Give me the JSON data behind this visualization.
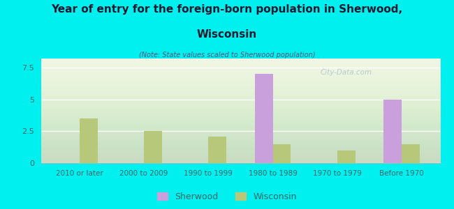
{
  "categories": [
    "2010 or later",
    "2000 to 2009",
    "1990 to 1999",
    "1980 to 1989",
    "1970 to 1979",
    "Before 1970"
  ],
  "sherwood_values": [
    0,
    0,
    0,
    7.0,
    0,
    5.0
  ],
  "wisconsin_values": [
    3.5,
    2.5,
    2.1,
    1.5,
    1.0,
    1.5
  ],
  "sherwood_color": "#c9a0dc",
  "wisconsin_color": "#b8c87a",
  "title_line1": "Year of entry for the foreign-born population in Sherwood,",
  "title_line2": "Wisconsin",
  "subtitle": "(Note: State values scaled to Sherwood population)",
  "ylim": [
    0,
    8.2
  ],
  "yticks": [
    0,
    2.5,
    5,
    7.5
  ],
  "ytick_labels": [
    "0",
    "2.5",
    "5",
    "7.5"
  ],
  "background_color": "#00f0f0",
  "plot_bg_color": "#eef5e0",
  "bar_width": 0.28,
  "legend_sherwood": "Sherwood",
  "legend_wisconsin": "Wisconsin",
  "watermark": "City-Data.com",
  "title_color": "#1a1a2e",
  "subtitle_color": "#555577",
  "tick_color": "#336666"
}
